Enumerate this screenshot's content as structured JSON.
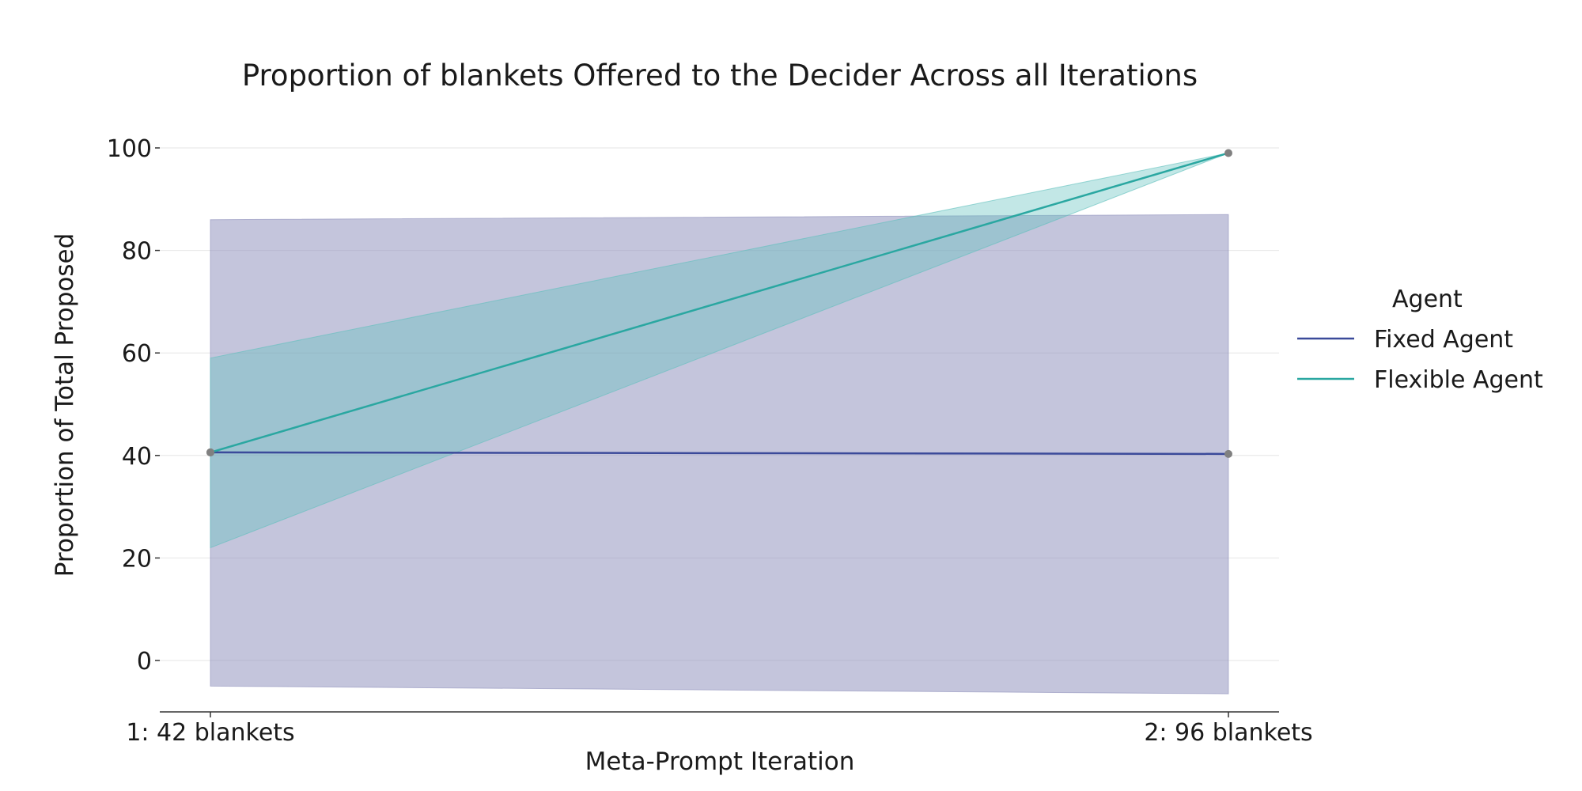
{
  "chart_data": {
    "type": "line",
    "title": "Proportion of blankets Offered to the Decider Across all Iterations",
    "xlabel": "Meta-Prompt Iteration",
    "ylabel": "Proportion of Total Proposed",
    "categories": [
      "1: 42 blankets",
      "2: 96 blankets"
    ],
    "ylim": [
      -10,
      100
    ],
    "yticks": [
      0,
      20,
      40,
      60,
      80,
      100
    ],
    "grid": true,
    "legend": {
      "title": "Agent",
      "placement": "right"
    },
    "series": [
      {
        "name": "Fixed Agent",
        "color": "#3b4a9a",
        "band_color": "#8e8fbb",
        "values": [
          40.6,
          40.3
        ],
        "lower": [
          -5,
          -6.5
        ],
        "upper": [
          86,
          87
        ]
      },
      {
        "name": "Flexible Agent",
        "color": "#2aa7a1",
        "band_color": "#5fbfbd",
        "values": [
          40.6,
          99
        ],
        "lower": [
          22,
          99
        ],
        "upper": [
          59,
          99
        ]
      }
    ],
    "point_color": "#808080"
  }
}
